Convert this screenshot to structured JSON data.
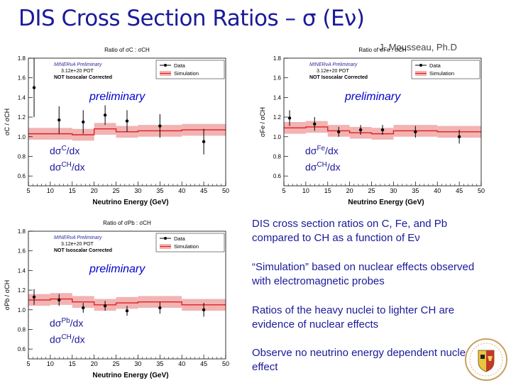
{
  "slide": {
    "title": "DIS Cross Section Ratios – σ (Eν)",
    "author": "J. Mousseau, Ph.D",
    "bullets": [
      "DIS cross section ratios on C, Fe, and Pb compared to CH as a function of Eν",
      "“Simulation” based on nuclear effects observed with electromagnetic probes",
      "Ratios of the heavy nuclei to lighter CH are evidence of nuclear effects",
      "Observe no neutrino energy dependent nuclear effect"
    ],
    "colors": {
      "title": "#1a1a99",
      "data": "#000000",
      "simulation": "#e02020",
      "band": "#f2b3b3",
      "preliminary": "#0000cc"
    }
  },
  "chart_data": [
    {
      "type": "scatter",
      "title": "Ratio of σC : σCH",
      "xlabel": "Neutrino Energy (GeV)",
      "ylabel": "σC / σCH",
      "xlim": [
        5,
        50
      ],
      "ylim": [
        0.5,
        1.8
      ],
      "xticks": [
        "5",
        "10",
        "15",
        "20",
        "25",
        "30",
        "35",
        "40",
        "45",
        "50"
      ],
      "yticks": [
        "0.6",
        "0.8",
        "1.0",
        "1.2",
        "1.4",
        "1.6",
        "1.8"
      ],
      "legend": [
        "Data",
        "Simulation"
      ],
      "info": [
        "MINERνA Preliminary",
        "3.12e+20 POT",
        "NOT Isoscalar Corrected"
      ],
      "preliminary": "preliminary",
      "ratio_label": {
        "num_base": "dσ",
        "num_sup": "C",
        "den_base": "dσ",
        "den_sup": "CH",
        "suffix": "/dx"
      },
      "bins": [
        5,
        10,
        15,
        20,
        25,
        30,
        40,
        50
      ],
      "data": {
        "x": [
          6.3,
          12,
          17.5,
          22.5,
          27.5,
          35,
          45
        ],
        "y": [
          1.5,
          1.17,
          1.15,
          1.22,
          1.16,
          1.11,
          0.95
        ],
        "err": [
          0.3,
          0.14,
          0.12,
          0.1,
          0.11,
          0.12,
          0.13
        ]
      },
      "simulation": {
        "values": [
          1.03,
          1.03,
          1.02,
          1.08,
          1.05,
          1.06,
          1.07
        ],
        "err": [
          0.06,
          0.06,
          0.06,
          0.06,
          0.06,
          0.06,
          0.06
        ]
      }
    },
    {
      "type": "scatter",
      "title": "Ratio of σFe : σCH",
      "xlabel": "Neutrino Energy (GeV)",
      "ylabel": "σFe / σCH",
      "xlim": [
        5,
        50
      ],
      "ylim": [
        0.5,
        1.8
      ],
      "xticks": [
        "5",
        "10",
        "15",
        "20",
        "25",
        "30",
        "35",
        "40",
        "45",
        "50"
      ],
      "yticks": [
        "0.6",
        "0.8",
        "1.0",
        "1.2",
        "1.4",
        "1.6",
        "1.8"
      ],
      "legend": [
        "Data",
        "Simulation"
      ],
      "info": [
        "MINERνA Preliminary",
        "3.12e+20 POT",
        "NOT Isoscalar Corrected"
      ],
      "preliminary": "preliminary",
      "ratio_label": {
        "num_base": "dσ",
        "num_sup": "Fe",
        "den_base": "dσ",
        "den_sup": "CH",
        "suffix": "/dx"
      },
      "bins": [
        5,
        10,
        15,
        20,
        25,
        30,
        40,
        50
      ],
      "data": {
        "x": [
          6.3,
          12,
          17.5,
          22.5,
          27.5,
          35,
          45
        ],
        "y": [
          1.19,
          1.13,
          1.05,
          1.07,
          1.07,
          1.05,
          1.0
        ],
        "err": [
          0.08,
          0.07,
          0.05,
          0.05,
          0.05,
          0.06,
          0.07
        ]
      },
      "simulation": {
        "values": [
          1.09,
          1.1,
          1.06,
          1.04,
          1.03,
          1.06,
          1.05
        ],
        "err": [
          0.06,
          0.06,
          0.06,
          0.06,
          0.06,
          0.06,
          0.06
        ]
      }
    },
    {
      "type": "scatter",
      "title": "Ratio of σPb : σCH",
      "xlabel": "Neutrino Energy (GeV)",
      "ylabel": "σPb / σCH",
      "xlim": [
        5,
        50
      ],
      "ylim": [
        0.5,
        1.8
      ],
      "xticks": [
        "5",
        "10",
        "15",
        "20",
        "25",
        "30",
        "35",
        "40",
        "45",
        "50"
      ],
      "yticks": [
        "0.6",
        "0.8",
        "1.0",
        "1.2",
        "1.4",
        "1.6",
        "1.8"
      ],
      "legend": [
        "Data",
        "Simulation"
      ],
      "info": [
        "MINERνA Preliminary",
        "3.12e+20 POT",
        "NOT Isoscalar Corrected"
      ],
      "preliminary": "preliminary",
      "ratio_label": {
        "num_base": "dσ",
        "num_sup": "Pb",
        "den_base": "dσ",
        "den_sup": "CH",
        "suffix": "/dx"
      },
      "bins": [
        5,
        10,
        15,
        20,
        25,
        30,
        40,
        50
      ],
      "data": {
        "x": [
          6.3,
          12,
          17.5,
          22.5,
          27.5,
          35,
          45
        ],
        "y": [
          1.13,
          1.1,
          1.02,
          1.04,
          0.99,
          1.02,
          1.0
        ],
        "err": [
          0.08,
          0.06,
          0.05,
          0.05,
          0.05,
          0.06,
          0.07
        ]
      },
      "simulation": {
        "values": [
          1.1,
          1.11,
          1.08,
          1.05,
          1.07,
          1.08,
          1.05
        ],
        "err": [
          0.06,
          0.06,
          0.06,
          0.06,
          0.06,
          0.06,
          0.06
        ]
      }
    }
  ]
}
